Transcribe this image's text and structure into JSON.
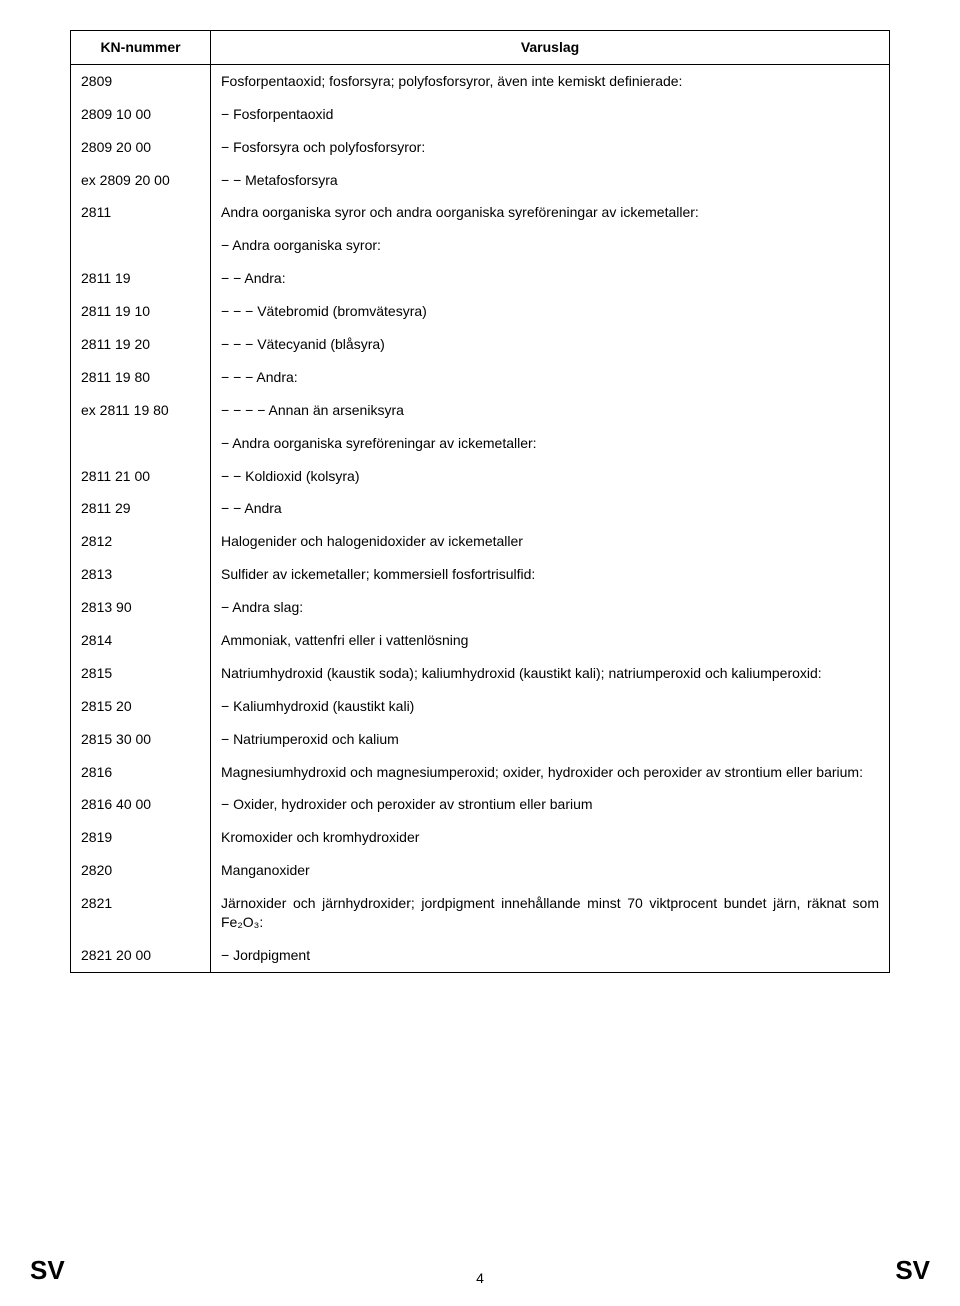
{
  "headers": {
    "code": "KN-nummer",
    "desc": "Varuslag"
  },
  "rows": [
    {
      "code": "2809",
      "desc": "Fosforpentaoxid; fosforsyra; polyfosforsyror, även inte kemiskt definierade:"
    },
    {
      "code": "2809 10 00",
      "desc": "− Fosforpentaoxid"
    },
    {
      "code": "2809 20 00",
      "desc": "− Fosforsyra och polyfosforsyror:"
    },
    {
      "code": "ex 2809 20 00",
      "desc": "− − Metafosforsyra"
    },
    {
      "code": "2811",
      "desc": "Andra oorganiska syror och andra oorganiska syreföreningar av ickemetaller:"
    },
    {
      "code": "",
      "desc": "− Andra oorganiska syror:"
    },
    {
      "code": "2811 19",
      "desc": "− − Andra:"
    },
    {
      "code": "2811 19 10",
      "desc": "− − − Vätebromid (bromvätesyra)"
    },
    {
      "code": "2811 19 20",
      "desc": "− − − Vätecyanid (blåsyra)"
    },
    {
      "code": "2811 19 80",
      "desc": "− − − Andra:"
    },
    {
      "code": "ex 2811 19 80",
      "desc": "− − − − Annan än arseniksyra"
    },
    {
      "code": "",
      "desc": "− Andra oorganiska syreföreningar av ickemetaller:"
    },
    {
      "code": "2811 21 00",
      "desc": "− − Koldioxid (kolsyra)"
    },
    {
      "code": "2811 29",
      "desc": "− − Andra"
    },
    {
      "code": "2812",
      "desc": "Halogenider och halogenidoxider av ickemetaller"
    },
    {
      "code": "2813",
      "desc": "Sulfider av ickemetaller; kommersiell fosfortrisulfid:"
    },
    {
      "code": "2813 90",
      "desc": "− Andra slag:"
    },
    {
      "code": "2814",
      "desc": "Ammoniak, vattenfri eller i vattenlösning"
    },
    {
      "code": "2815",
      "desc": "Natriumhydroxid (kaustik soda); kaliumhydroxid (kaustikt kali); natriumperoxid och kaliumperoxid:",
      "justify": true
    },
    {
      "code": "2815 20",
      "desc": "− Kaliumhydroxid (kaustikt kali)"
    },
    {
      "code": "2815 30 00",
      "desc": "− Natriumperoxid och kalium"
    },
    {
      "code": "2816",
      "desc": "Magnesiumhydroxid och magnesiumperoxid; oxider, hydroxider och peroxider av strontium eller barium:",
      "justify": true
    },
    {
      "code": "2816 40 00",
      "desc": "− Oxider, hydroxider och peroxider av strontium eller barium"
    },
    {
      "code": "2819",
      "desc": "Kromoxider och kromhydroxider"
    },
    {
      "code": "2820",
      "desc": "Manganoxider"
    },
    {
      "code": "2821",
      "desc": "Järnoxider och järnhydroxider; jordpigment innehållande minst 70 viktprocent bundet järn, räknat som Fe₂O₃:",
      "justify": true
    },
    {
      "code": "2821 20 00",
      "desc": "− Jordpigment"
    }
  ],
  "footer": {
    "left": "SV",
    "right": "SV",
    "page": "4"
  }
}
